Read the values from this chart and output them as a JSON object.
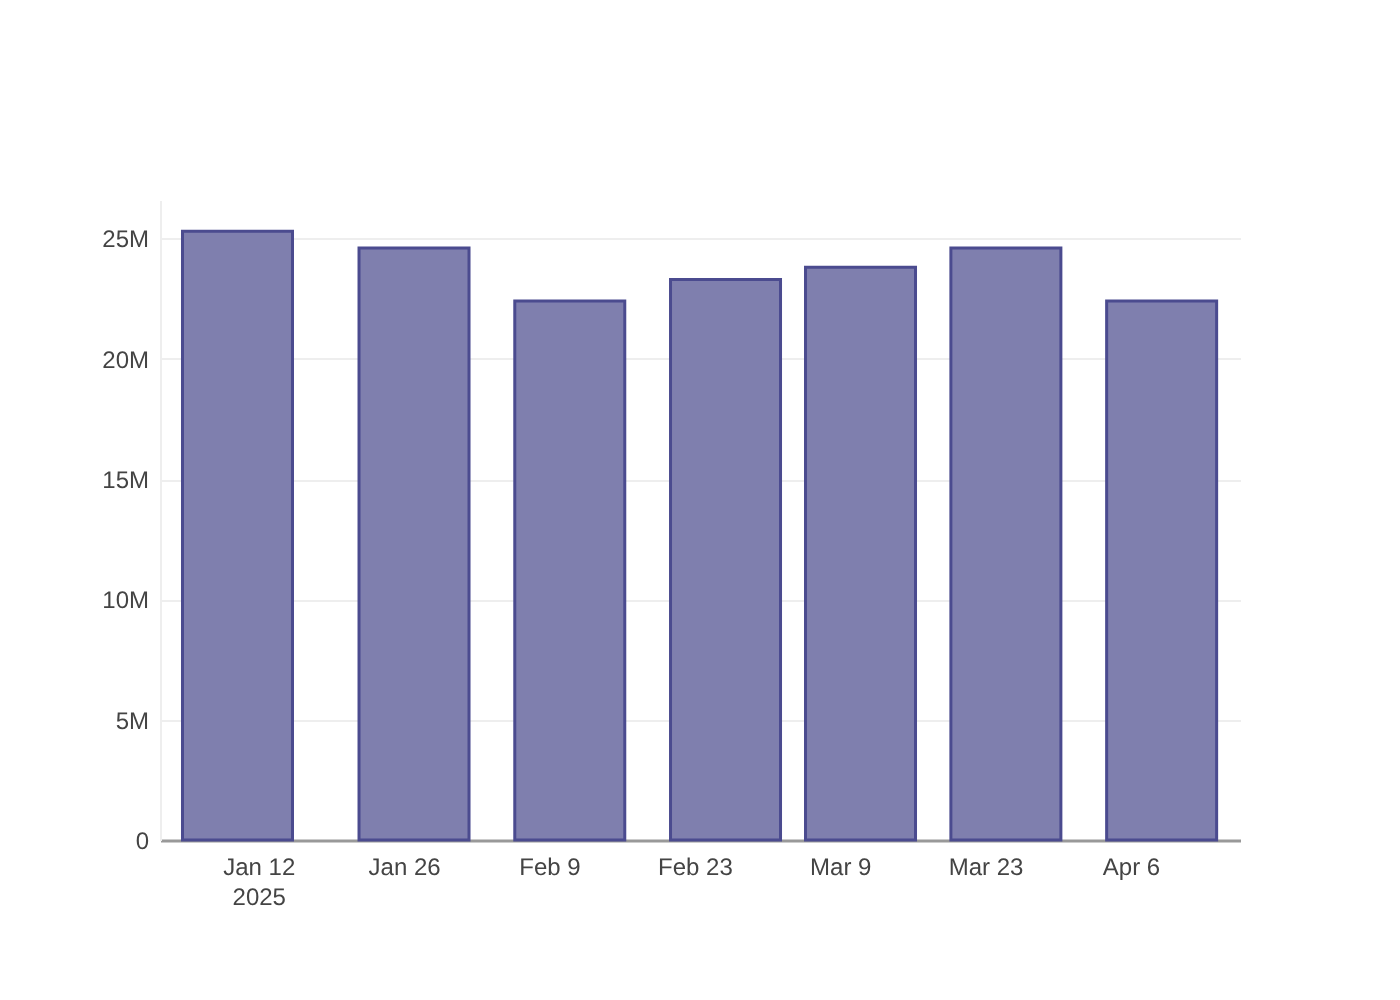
{
  "chart_data": {
    "type": "bar",
    "x": [
      "2025-01-10",
      "2025-01-27",
      "2025-02-11",
      "2025-02-26",
      "2025-03-11",
      "2025-03-25",
      "2025-04-09"
    ],
    "values": [
      25300000,
      24600000,
      22400000,
      23300000,
      23800000,
      24600000,
      22400000
    ],
    "color": "#7f7fae",
    "xlim": [
      "2025-01-03T12:00",
      "2025-04-15T14:00"
    ],
    "xticks": [
      {
        "value": "2025-01-12",
        "label": "Jan 12\n2025"
      },
      {
        "value": "2025-01-26",
        "label": "Jan 26"
      },
      {
        "value": "2025-02-09",
        "label": "Feb 9"
      },
      {
        "value": "2025-02-23",
        "label": "Feb 23"
      },
      {
        "value": "2025-03-09",
        "label": "Mar 9"
      },
      {
        "value": "2025-03-23",
        "label": "Mar 23"
      },
      {
        "value": "2025-04-06",
        "label": "Apr 6"
      }
    ],
    "ylim": [
      0,
      26600000
    ],
    "yticks": [
      0,
      {
        "value": 5000000,
        "label": "5M"
      },
      {
        "value": 10000000,
        "label": "10M"
      },
      {
        "value": 15000000,
        "label": "15M"
      },
      {
        "value": 20000000,
        "label": "20M"
      },
      {
        "value": 25000000,
        "label": "25M"
      }
    ],
    "grid": "y"
  }
}
